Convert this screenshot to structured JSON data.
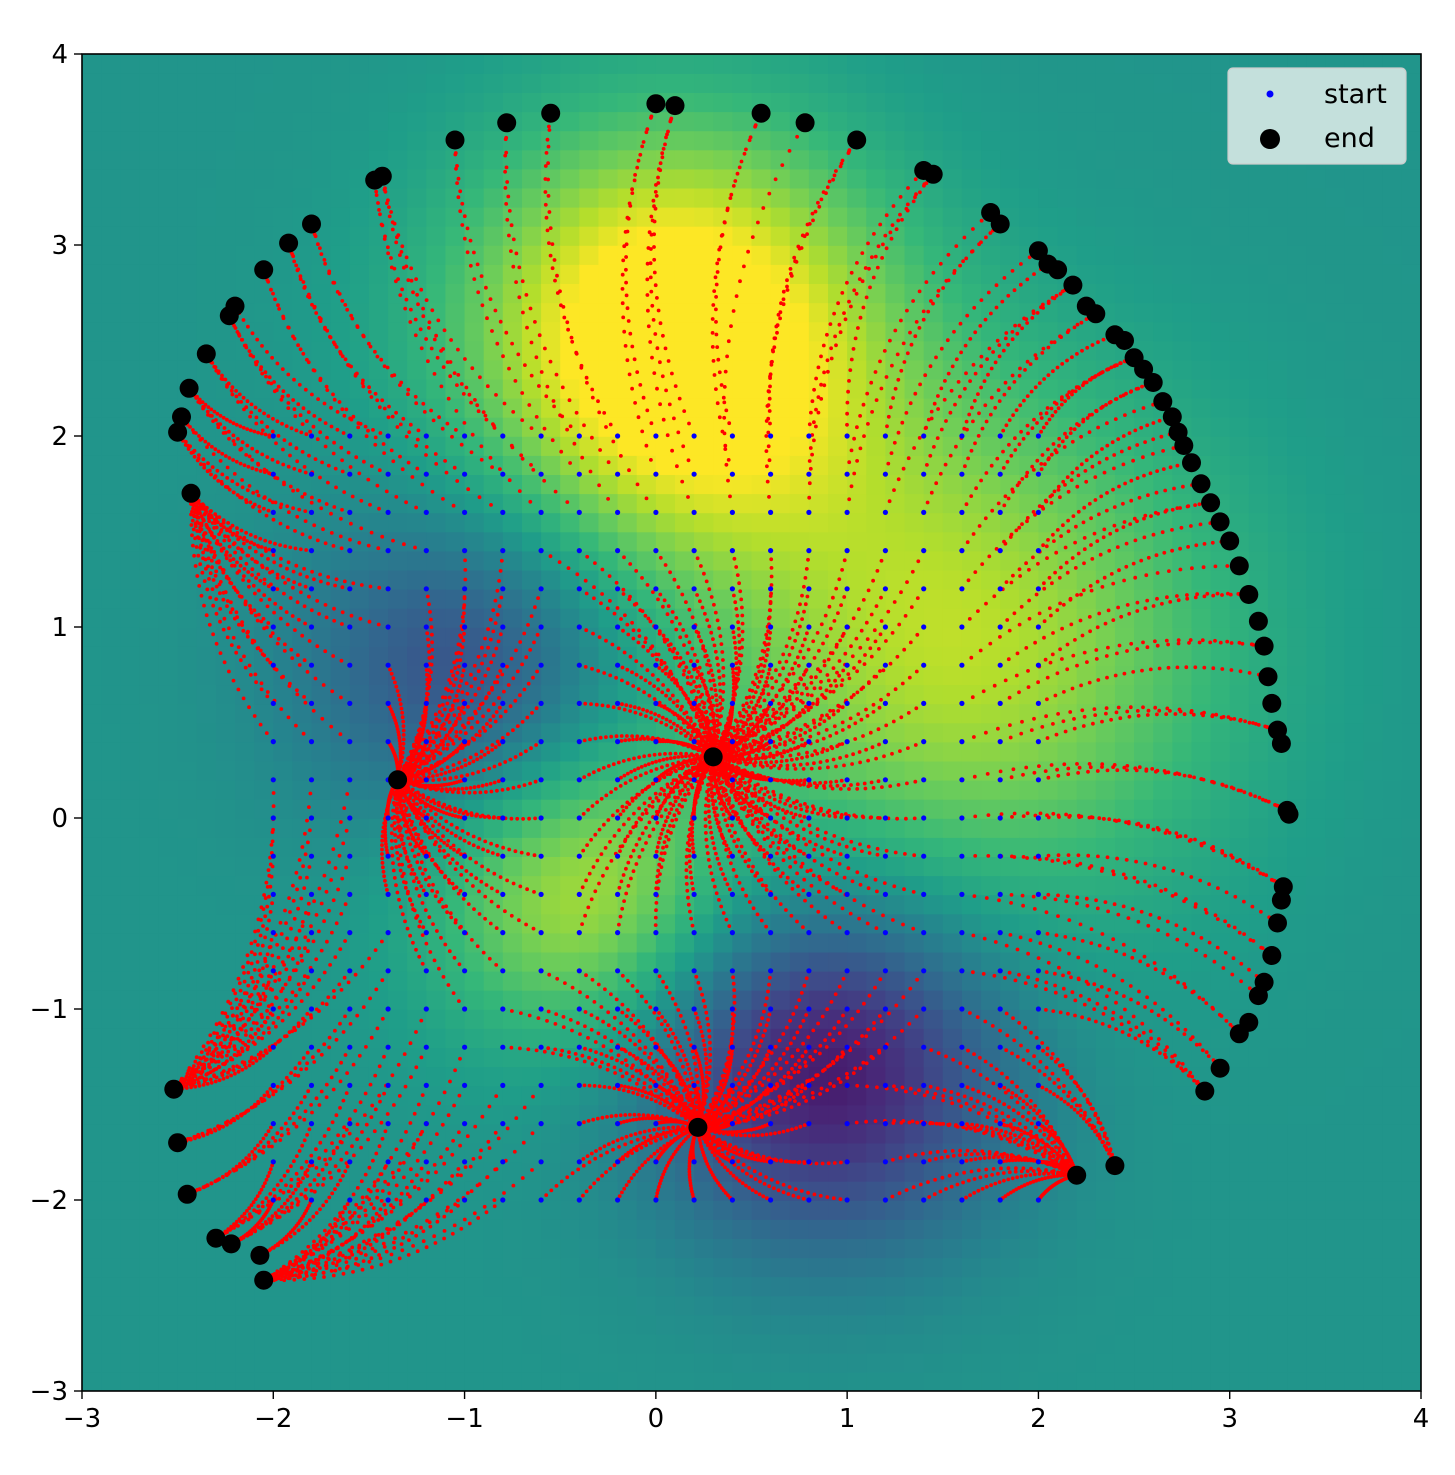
{
  "chart_data": {
    "type": "scatter",
    "title": "",
    "xlabel": "",
    "ylabel": "",
    "xlim": [
      -3,
      4
    ],
    "ylim": [
      -3,
      4
    ],
    "x_ticks": [
      -3,
      -2,
      -1,
      0,
      1,
      2,
      3,
      4
    ],
    "y_ticks": [
      -3,
      -2,
      -1,
      0,
      1,
      2,
      3,
      4
    ],
    "x_tick_labels": [
      "−3",
      "−2",
      "−1",
      "0",
      "1",
      "2",
      "3",
      "4"
    ],
    "y_tick_labels": [
      "−3",
      "−2",
      "−1",
      "0",
      "1",
      "2",
      "3",
      "4"
    ],
    "grid": false,
    "legend_position": "top-right",
    "background": {
      "kind": "heatmap",
      "colormap": "viridis",
      "peaks": [
        {
          "x": 0.1,
          "y": 2.5
        },
        {
          "x": 1.6,
          "y": 0.9
        },
        {
          "x": -0.4,
          "y": -0.4
        }
      ],
      "troughs": [
        {
          "x": 0.9,
          "y": -1.3
        },
        {
          "x": -1.0,
          "y": 0.8
        }
      ]
    },
    "start_grid": {
      "x_values": [
        -2.0,
        -1.8,
        -1.6,
        -1.4,
        -1.2,
        -1.0,
        -0.8,
        -0.6,
        -0.4,
        -0.2,
        0.0,
        0.2,
        0.4,
        0.6,
        0.8,
        1.0,
        1.2,
        1.4,
        1.6,
        1.8,
        2.0
      ],
      "y_values": [
        -2.0,
        -1.8,
        -1.6,
        -1.4,
        -1.2,
        -1.0,
        -0.8,
        -0.6,
        -0.4,
        -0.2,
        0.0,
        0.2,
        0.4,
        0.6,
        0.8,
        1.0,
        1.2,
        1.4,
        1.6,
        1.8,
        2.0
      ]
    },
    "attractors": [
      {
        "x": -1.35,
        "y": 0.2
      },
      {
        "x": 0.3,
        "y": 0.32
      },
      {
        "x": 0.22,
        "y": -1.62
      }
    ],
    "series": [
      {
        "name": "start",
        "color": "#0000ff",
        "marker": "small-dot"
      },
      {
        "name": "end",
        "color": "#000000",
        "marker": "large-dot",
        "points": [
          [
            -2.5,
            2.02
          ],
          [
            -2.48,
            2.1
          ],
          [
            -2.44,
            2.25
          ],
          [
            -2.43,
            1.7
          ],
          [
            -2.35,
            2.43
          ],
          [
            -2.23,
            2.63
          ],
          [
            -2.2,
            2.68
          ],
          [
            -2.05,
            2.87
          ],
          [
            -1.92,
            3.01
          ],
          [
            -1.8,
            3.11
          ],
          [
            -1.47,
            3.34
          ],
          [
            -1.43,
            3.36
          ],
          [
            -1.05,
            3.55
          ],
          [
            -0.78,
            3.64
          ],
          [
            -0.55,
            3.69
          ],
          [
            0.0,
            3.74
          ],
          [
            0.1,
            3.73
          ],
          [
            0.55,
            3.69
          ],
          [
            0.78,
            3.64
          ],
          [
            1.05,
            3.55
          ],
          [
            1.4,
            3.39
          ],
          [
            1.45,
            3.37
          ],
          [
            1.75,
            3.17
          ],
          [
            1.8,
            3.11
          ],
          [
            2.0,
            2.97
          ],
          [
            2.05,
            2.9
          ],
          [
            2.1,
            2.87
          ],
          [
            2.18,
            2.79
          ],
          [
            2.25,
            2.68
          ],
          [
            2.3,
            2.64
          ],
          [
            2.4,
            2.53
          ],
          [
            2.45,
            2.5
          ],
          [
            2.5,
            2.41
          ],
          [
            2.55,
            2.35
          ],
          [
            2.6,
            2.28
          ],
          [
            2.65,
            2.18
          ],
          [
            2.7,
            2.1
          ],
          [
            2.73,
            2.02
          ],
          [
            2.76,
            1.95
          ],
          [
            2.8,
            1.86
          ],
          [
            2.85,
            1.75
          ],
          [
            2.9,
            1.65
          ],
          [
            2.95,
            1.55
          ],
          [
            3.0,
            1.45
          ],
          [
            3.05,
            1.32
          ],
          [
            3.1,
            1.17
          ],
          [
            3.15,
            1.03
          ],
          [
            3.18,
            0.9
          ],
          [
            3.2,
            0.74
          ],
          [
            3.22,
            0.6
          ],
          [
            3.25,
            0.46
          ],
          [
            3.27,
            0.39
          ],
          [
            3.3,
            0.04
          ],
          [
            3.31,
            0.02
          ],
          [
            3.28,
            -0.36
          ],
          [
            3.27,
            -0.43
          ],
          [
            3.25,
            -0.55
          ],
          [
            3.22,
            -0.72
          ],
          [
            3.18,
            -0.86
          ],
          [
            3.15,
            -0.93
          ],
          [
            3.1,
            -1.07
          ],
          [
            3.05,
            -1.13
          ],
          [
            2.95,
            -1.31
          ],
          [
            2.87,
            -1.43
          ],
          [
            2.4,
            -1.82
          ],
          [
            2.2,
            -1.87
          ],
          [
            0.22,
            -1.62
          ],
          [
            -2.52,
            -1.42
          ],
          [
            -2.5,
            -1.7
          ],
          [
            -2.45,
            -1.97
          ],
          [
            -2.3,
            -2.2
          ],
          [
            -2.22,
            -2.23
          ],
          [
            -2.07,
            -2.29
          ],
          [
            -2.05,
            -2.42
          ],
          [
            -1.35,
            0.2
          ],
          [
            0.3,
            0.32
          ]
        ]
      },
      {
        "name": "",
        "color": "#ff0000",
        "marker": "trajectory"
      }
    ]
  },
  "legend": {
    "items": [
      {
        "label": "start",
        "color": "#0000ff"
      },
      {
        "label": "end",
        "color": "#000000"
      }
    ]
  }
}
